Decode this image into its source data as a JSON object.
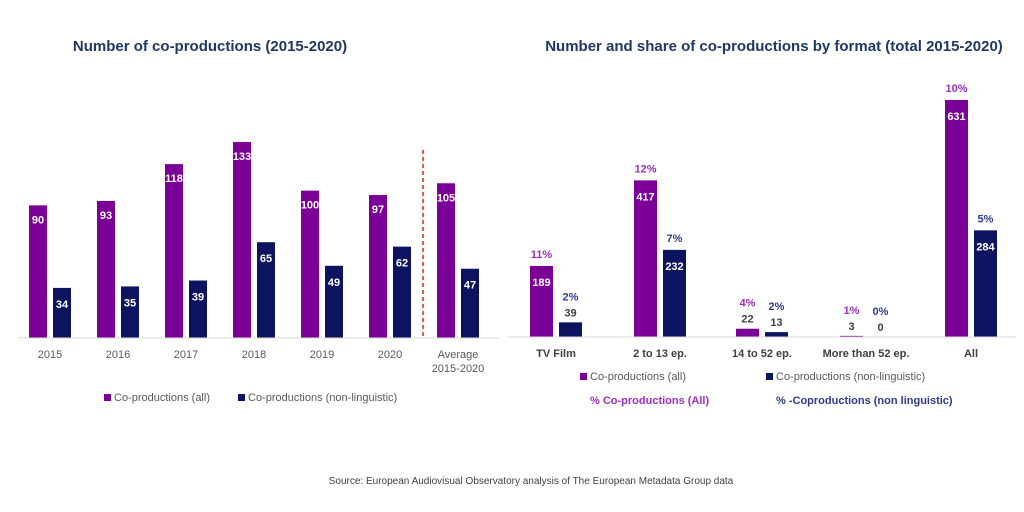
{
  "colors": {
    "all": "#7b0096",
    "non_linguistic": "#0c1460",
    "pct_all": "#9b30c0",
    "pct_non_linguistic": "#2e3a8c",
    "title": "#1f3864",
    "divider": "#e0201c",
    "axis": "#d9d9d9"
  },
  "source": "Source: European Audiovisual Observatory analysis of The European Metadata Group data",
  "chart_data": [
    {
      "type": "bar",
      "title": "Number of co-productions (2015-2020)",
      "xlabel": "",
      "ylabel": "",
      "categories": [
        "2015",
        "2016",
        "2017",
        "2018",
        "2019",
        "2020",
        "Average\n2015-2020"
      ],
      "category_lines": [
        [
          "2015"
        ],
        [
          "2016"
        ],
        [
          "2017"
        ],
        [
          "2018"
        ],
        [
          "2019"
        ],
        [
          "2020"
        ],
        [
          "Average",
          "2015-2020"
        ]
      ],
      "series": [
        {
          "name": "Co-productions (all)",
          "values": [
            90,
            93,
            118,
            133,
            100,
            97,
            105
          ]
        },
        {
          "name": "Co-productions (non-linguistic)",
          "values": [
            34,
            35,
            39,
            65,
            49,
            62,
            47
          ]
        }
      ],
      "ylim": [
        0,
        133
      ],
      "grid": false,
      "annotations": [
        "dashed divider before Average 2015-2020"
      ],
      "legend_position": "bottom"
    },
    {
      "type": "bar",
      "title": "Number and share of co-productions by format (total 2015-2020)",
      "xlabel": "",
      "ylabel": "",
      "categories": [
        "TV Film",
        "2 to 13 ep.",
        "14 to 52 ep.",
        "More than 52 ep.",
        "All"
      ],
      "series": [
        {
          "name": "Co-productions (all)",
          "values": [
            189,
            417,
            22,
            3,
            631
          ],
          "pct_labels": [
            "11%",
            "12%",
            "4%",
            "1%",
            "10%"
          ]
        },
        {
          "name": "Co-productions (non-linguistic)",
          "values": [
            39,
            232,
            13,
            0,
            284
          ],
          "pct_labels": [
            "2%",
            "7%",
            "2%",
            "0%",
            "5%"
          ]
        }
      ],
      "legend": [
        "Co-productions (all)",
        "Co-productions (non-linguistic)",
        "% Co-productions (All)",
        "% -Coproductions (non linguistic)"
      ],
      "ylim": [
        0,
        631
      ],
      "grid": false,
      "legend_position": "bottom"
    }
  ]
}
